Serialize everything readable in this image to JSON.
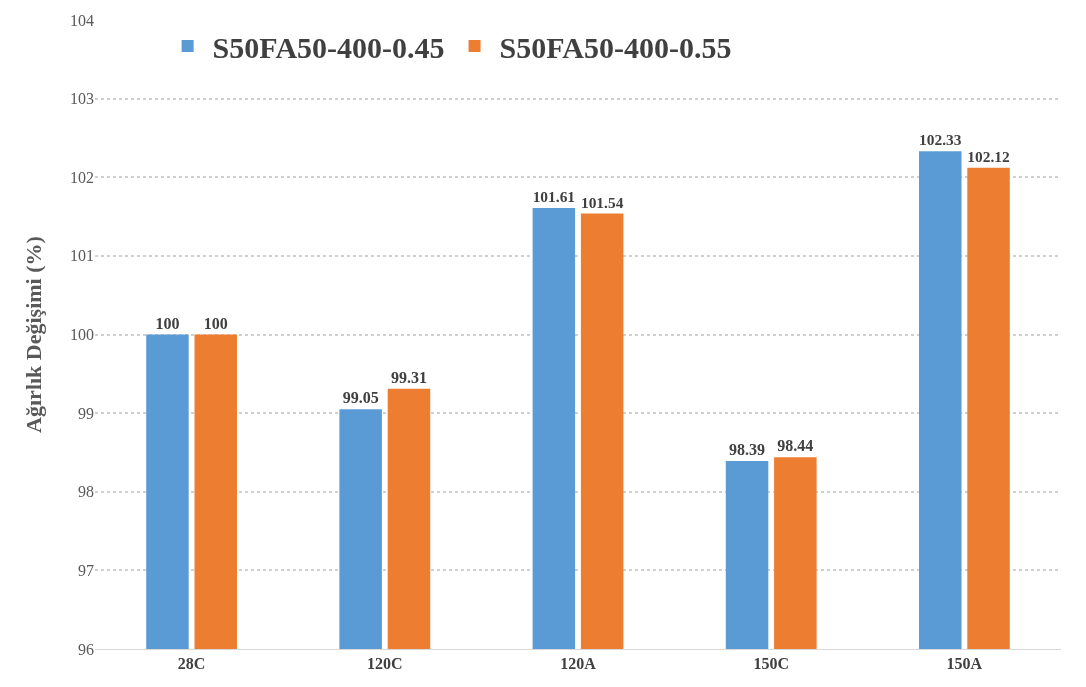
{
  "chart_data": {
    "type": "bar",
    "ylabel": "Ağırlık Değişimi (%)",
    "categories": [
      "28C",
      "120C",
      "120A",
      "150C",
      "150A"
    ],
    "series": [
      {
        "name": "S50FA50-400-0.45",
        "color": "#5b9bd5",
        "values": [
          100,
          99.05,
          101.61,
          98.39,
          102.33
        ]
      },
      {
        "name": "S50FA50-400-0.55",
        "color": "#ed7d31",
        "values": [
          100,
          99.31,
          101.54,
          98.44,
          102.12
        ]
      }
    ],
    "ylim": [
      96,
      104
    ],
    "yticks": [
      96,
      97,
      98,
      99,
      100,
      101,
      102,
      103,
      104
    ],
    "grid": "y",
    "legend": "top left",
    "data_labels": true
  }
}
